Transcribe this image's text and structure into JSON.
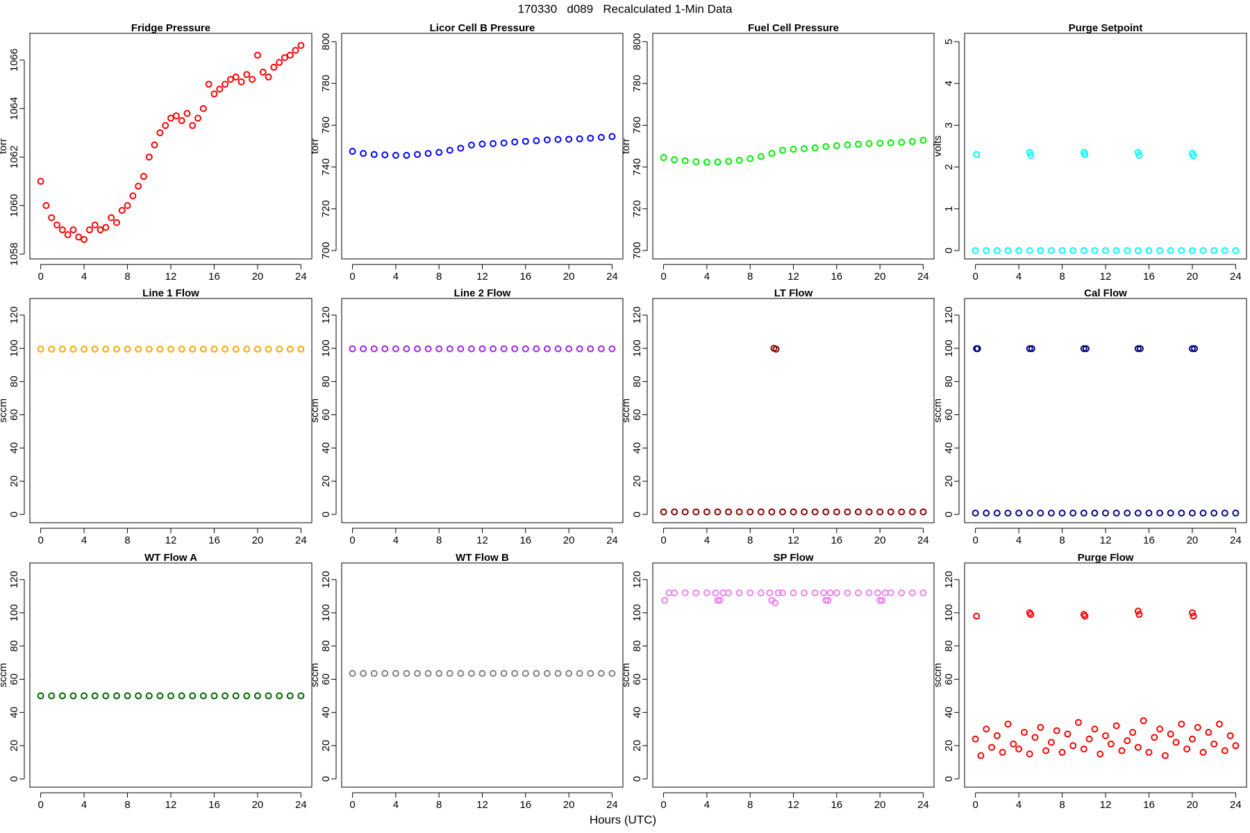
{
  "title": "170330   d089   Recalculated 1-Min Data",
  "xlabel": "Hours (UTC)",
  "chart_data": [
    {
      "type": "scatter",
      "title": "Fridge Pressure",
      "ylabel": "torr",
      "color": "#ff0000",
      "x": [
        0,
        0.5,
        1,
        1.5,
        2,
        2.5,
        3,
        3.5,
        4,
        4.5,
        5,
        5.5,
        6,
        6.5,
        7,
        7.5,
        8,
        8.5,
        9,
        9.5,
        10,
        10.5,
        11,
        11.5,
        12,
        12.5,
        13,
        13.5,
        14,
        14.5,
        15,
        15.5,
        16,
        16.5,
        17,
        17.5,
        18,
        18.5,
        19,
        19.5,
        20,
        20.5,
        21,
        21.5,
        22,
        22.5,
        23,
        23.5,
        24
      ],
      "values": [
        1061,
        1060,
        1059.5,
        1059.2,
        1059,
        1058.8,
        1059,
        1058.7,
        1058.6,
        1059,
        1059.2,
        1059,
        1059.1,
        1059.5,
        1059.3,
        1059.8,
        1060,
        1060.4,
        1060.8,
        1061.2,
        1062,
        1062.5,
        1063,
        1063.3,
        1063.6,
        1063.7,
        1063.5,
        1063.8,
        1063.3,
        1063.6,
        1064,
        1065,
        1064.6,
        1064.8,
        1065,
        1065.2,
        1065.3,
        1065.1,
        1065.4,
        1065.2,
        1066.2,
        1065.5,
        1065.3,
        1065.7,
        1065.9,
        1066.1,
        1066.2,
        1066.4,
        1066.6
      ],
      "xlim": [
        -1,
        25
      ],
      "xticks": [
        0,
        4,
        8,
        12,
        16,
        20,
        24
      ],
      "ylim": [
        1057.8,
        1067.1
      ],
      "yticks": [
        1058,
        1060,
        1062,
        1064,
        1066
      ]
    },
    {
      "type": "scatter",
      "title": "Licor Cell B Pressure",
      "ylabel": "torr",
      "color": "#0000ff",
      "x": [
        0,
        1,
        2,
        3,
        4,
        5,
        6,
        7,
        8,
        9,
        10,
        11,
        12,
        13,
        14,
        15,
        16,
        17,
        18,
        19,
        20,
        21,
        22,
        23,
        24
      ],
      "values": [
        747.5,
        746.5,
        746,
        745.8,
        745.6,
        745.6,
        746,
        746.5,
        747,
        748,
        749,
        750.5,
        751,
        751.2,
        751.5,
        752,
        752.3,
        752.6,
        753,
        753.2,
        753.3,
        753.5,
        753.8,
        754.2,
        754.6
      ],
      "xlim": [
        -1,
        25
      ],
      "xticks": [
        0,
        4,
        8,
        12,
        16,
        20,
        24
      ],
      "ylim": [
        696,
        804
      ],
      "yticks": [
        700,
        720,
        740,
        760,
        780,
        800
      ]
    },
    {
      "type": "scatter",
      "title": "Fuel Cell Pressure",
      "ylabel": "torr",
      "color": "#00ee00",
      "x": [
        0,
        1,
        2,
        3,
        4,
        5,
        6,
        7,
        8,
        9,
        10,
        11,
        12,
        13,
        14,
        15,
        16,
        17,
        18,
        19,
        20,
        21,
        22,
        23,
        24
      ],
      "values": [
        744.5,
        743.5,
        743,
        742.5,
        742.3,
        742.4,
        742.7,
        743.2,
        744,
        745,
        746.5,
        748,
        748.5,
        748.8,
        749.2,
        749.8,
        750.2,
        750.6,
        750.9,
        751.2,
        751.4,
        751.6,
        751.8,
        752.2,
        752.8
      ],
      "xlim": [
        -1,
        25
      ],
      "xticks": [
        0,
        4,
        8,
        12,
        16,
        20,
        24
      ],
      "ylim": [
        696,
        804
      ],
      "yticks": [
        700,
        720,
        740,
        760,
        780,
        800
      ]
    },
    {
      "type": "scatter",
      "title": "Purge Setpoint",
      "ylabel": "volts",
      "color": "#00ffff",
      "x": [
        0,
        1,
        2,
        3,
        4,
        5,
        6,
        7,
        8,
        9,
        10,
        11,
        12,
        13,
        14,
        15,
        16,
        17,
        18,
        19,
        20,
        21,
        22,
        23,
        24,
        0.1,
        5,
        5.1,
        10,
        10.1,
        15,
        15.1,
        20,
        20.1
      ],
      "values": [
        0,
        0,
        0,
        0,
        0,
        0,
        0,
        0,
        0,
        0,
        0,
        0,
        0,
        0,
        0,
        0,
        0,
        0,
        0,
        0,
        0,
        0,
        0,
        0,
        0,
        2.3,
        2.35,
        2.28,
        2.35,
        2.3,
        2.35,
        2.28,
        2.33,
        2.27
      ],
      "xlim": [
        -1,
        25
      ],
      "xticks": [
        0,
        4,
        8,
        12,
        16,
        20,
        24
      ],
      "ylim": [
        -0.2,
        5.2
      ],
      "yticks": [
        0,
        1,
        2,
        3,
        4,
        5
      ]
    },
    {
      "type": "scatter",
      "title": "Line 1 Flow",
      "ylabel": "sccm",
      "color": "#ffa500",
      "x": [
        0,
        1,
        2,
        3,
        4,
        5,
        6,
        7,
        8,
        9,
        10,
        11,
        12,
        13,
        14,
        15,
        16,
        17,
        18,
        19,
        20,
        21,
        22,
        23,
        24
      ],
      "values": [
        99.5,
        99.5,
        99.5,
        99.5,
        99.5,
        99.5,
        99.5,
        99.5,
        99.5,
        99.5,
        99.5,
        99.5,
        99.5,
        99.5,
        99.5,
        99.5,
        99.5,
        99.5,
        99.5,
        99.5,
        99.5,
        99.5,
        99.5,
        99.5,
        99.5
      ],
      "xlim": [
        -1,
        25
      ],
      "xticks": [
        0,
        4,
        8,
        12,
        16,
        20,
        24
      ],
      "ylim": [
        -5,
        130
      ],
      "yticks": [
        0,
        20,
        40,
        60,
        80,
        100,
        120
      ]
    },
    {
      "type": "scatter",
      "title": "Line 2 Flow",
      "ylabel": "sccm",
      "color": "#a020f0",
      "x": [
        0,
        1,
        2,
        3,
        4,
        5,
        6,
        7,
        8,
        9,
        10,
        11,
        12,
        13,
        14,
        15,
        16,
        17,
        18,
        19,
        20,
        21,
        22,
        23,
        24
      ],
      "values": [
        99.7,
        99.7,
        99.7,
        99.7,
        99.7,
        99.7,
        99.7,
        99.7,
        99.7,
        99.7,
        99.7,
        99.7,
        99.7,
        99.7,
        99.7,
        99.7,
        99.7,
        99.7,
        99.7,
        99.7,
        99.7,
        99.7,
        99.7,
        99.7,
        99.7
      ],
      "xlim": [
        -1,
        25
      ],
      "xticks": [
        0,
        4,
        8,
        12,
        16,
        20,
        24
      ],
      "ylim": [
        -5,
        130
      ],
      "yticks": [
        0,
        20,
        40,
        60,
        80,
        100,
        120
      ]
    },
    {
      "type": "scatter",
      "title": "LT Flow",
      "ylabel": "sccm",
      "color": "#8b0000",
      "x": [
        0,
        1,
        2,
        3,
        4,
        5,
        6,
        7,
        8,
        9,
        10,
        11,
        12,
        13,
        14,
        15,
        16,
        17,
        18,
        19,
        20,
        21,
        22,
        23,
        24,
        10.2,
        10.4
      ],
      "values": [
        1.5,
        1.5,
        1.5,
        1.5,
        1.5,
        1.5,
        1.5,
        1.5,
        1.5,
        1.5,
        1.5,
        1.5,
        1.5,
        1.5,
        1.5,
        1.5,
        1.5,
        1.5,
        1.5,
        1.5,
        1.5,
        1.5,
        1.5,
        1.5,
        1.5,
        100,
        99.5
      ],
      "xlim": [
        -1,
        25
      ],
      "xticks": [
        0,
        4,
        8,
        12,
        16,
        20,
        24
      ],
      "ylim": [
        -5,
        130
      ],
      "yticks": [
        0,
        20,
        40,
        60,
        80,
        100,
        120
      ]
    },
    {
      "type": "scatter",
      "title": "Cal Flow",
      "ylabel": "sccm",
      "color": "#000080",
      "x": [
        0,
        1,
        2,
        3,
        4,
        5,
        6,
        7,
        8,
        9,
        10,
        11,
        12,
        13,
        14,
        15,
        16,
        17,
        18,
        19,
        20,
        21,
        22,
        23,
        24,
        0.1,
        0.2,
        5,
        5.2,
        10,
        10.2,
        15,
        15.2,
        20,
        20.2
      ],
      "values": [
        0.8,
        0.8,
        0.8,
        0.8,
        0.8,
        0.8,
        0.8,
        0.8,
        0.8,
        0.8,
        0.8,
        0.8,
        0.8,
        0.8,
        0.8,
        0.8,
        0.8,
        0.8,
        0.8,
        0.8,
        0.8,
        0.8,
        0.8,
        0.8,
        0.8,
        99.8,
        99.8,
        99.8,
        99.8,
        99.8,
        99.8,
        99.8,
        99.8,
        99.8,
        99.8
      ],
      "xlim": [
        -1,
        25
      ],
      "xticks": [
        0,
        4,
        8,
        12,
        16,
        20,
        24
      ],
      "ylim": [
        -5,
        130
      ],
      "yticks": [
        0,
        20,
        40,
        60,
        80,
        100,
        120
      ]
    },
    {
      "type": "scatter",
      "title": "WT Flow A",
      "ylabel": "sccm",
      "color": "#006400",
      "x": [
        0,
        1,
        2,
        3,
        4,
        5,
        6,
        7,
        8,
        9,
        10,
        11,
        12,
        13,
        14,
        15,
        16,
        17,
        18,
        19,
        20,
        21,
        22,
        23,
        24
      ],
      "values": [
        50,
        50,
        50,
        50,
        50,
        50,
        50,
        50,
        50,
        50,
        50,
        50,
        50,
        50,
        50,
        50,
        50,
        50,
        50,
        50,
        50,
        50,
        50,
        50,
        50
      ],
      "xlim": [
        -1,
        25
      ],
      "xticks": [
        0,
        4,
        8,
        12,
        16,
        20,
        24
      ],
      "ylim": [
        -5,
        130
      ],
      "yticks": [
        0,
        20,
        40,
        60,
        80,
        100,
        120
      ]
    },
    {
      "type": "scatter",
      "title": "WT Flow B",
      "ylabel": "sccm",
      "color": "#808080",
      "x": [
        0,
        1,
        2,
        3,
        4,
        5,
        6,
        7,
        8,
        9,
        10,
        11,
        12,
        13,
        14,
        15,
        16,
        17,
        18,
        19,
        20,
        21,
        22,
        23,
        24
      ],
      "values": [
        63.5,
        63.5,
        63.5,
        63.5,
        63.5,
        63.5,
        63.5,
        63.5,
        63.5,
        63.5,
        63.5,
        63.5,
        63.5,
        63.5,
        63.5,
        63.5,
        63.5,
        63.5,
        63.5,
        63.5,
        63.5,
        63.5,
        63.5,
        63.5,
        63.5
      ],
      "xlim": [
        -1,
        25
      ],
      "xticks": [
        0,
        4,
        8,
        12,
        16,
        20,
        24
      ],
      "ylim": [
        -5,
        130
      ],
      "yticks": [
        0,
        20,
        40,
        60,
        80,
        100,
        120
      ]
    },
    {
      "type": "scatter",
      "title": "SP Flow",
      "ylabel": "sccm",
      "color": "#ee82ee",
      "x": [
        0.5,
        1,
        2,
        3,
        4,
        4.8,
        5.5,
        6,
        7,
        8,
        9,
        9.8,
        10.6,
        11,
        12,
        13,
        14,
        14.8,
        15.4,
        16,
        17,
        18,
        19,
        19.8,
        20.5,
        21,
        22,
        23,
        24,
        0.1,
        5,
        5.2,
        10,
        10.3,
        15,
        15.2,
        20,
        20.2
      ],
      "values": [
        112,
        112,
        112,
        112,
        112,
        112,
        112,
        112,
        112,
        112,
        112,
        112,
        112,
        112,
        112,
        112,
        112,
        112,
        112,
        112,
        112,
        112,
        112,
        112,
        112,
        112,
        112,
        112,
        112,
        107.5,
        107.5,
        107.5,
        107.5,
        106,
        107.5,
        107.5,
        107.5,
        107.5
      ],
      "xlim": [
        -1,
        25
      ],
      "xticks": [
        0,
        4,
        8,
        12,
        16,
        20,
        24
      ],
      "ylim": [
        -5,
        130
      ],
      "yticks": [
        0,
        20,
        40,
        60,
        80,
        100,
        120
      ]
    },
    {
      "type": "scatter",
      "title": "Purge Flow",
      "ylabel": "sccm",
      "color": "#ff0000",
      "x": [
        0,
        0.5,
        1,
        1.5,
        2,
        2.5,
        3,
        3.5,
        4,
        4.5,
        5,
        5.5,
        6,
        6.5,
        7,
        7.5,
        8,
        8.5,
        9,
        9.5,
        10,
        10.5,
        11,
        11.5,
        12,
        12.5,
        13,
        13.5,
        14,
        14.5,
        15,
        15.5,
        16,
        16.5,
        17,
        17.5,
        18,
        18.5,
        19,
        19.5,
        20,
        20.5,
        21,
        21.5,
        22,
        22.5,
        23,
        23.5,
        24,
        0.1,
        5,
        5.1,
        10,
        10.1,
        15,
        15.1,
        20,
        20.1
      ],
      "values": [
        24,
        14,
        30,
        19,
        26,
        16,
        33,
        21,
        18,
        28,
        15,
        25,
        31,
        17,
        22,
        29,
        16,
        27,
        20,
        34,
        18,
        24,
        30,
        15,
        26,
        21,
        32,
        17,
        23,
        28,
        19,
        35,
        16,
        25,
        30,
        14,
        27,
        22,
        33,
        18,
        24,
        31,
        16,
        28,
        21,
        33,
        17,
        26,
        20,
        98,
        100,
        99,
        99,
        98,
        101,
        99,
        100,
        98
      ],
      "xlim": [
        -1,
        25
      ],
      "xticks": [
        0,
        4,
        8,
        12,
        16,
        20,
        24
      ],
      "ylim": [
        -5,
        130
      ],
      "yticks": [
        0,
        20,
        40,
        60,
        80,
        100,
        120
      ]
    }
  ]
}
